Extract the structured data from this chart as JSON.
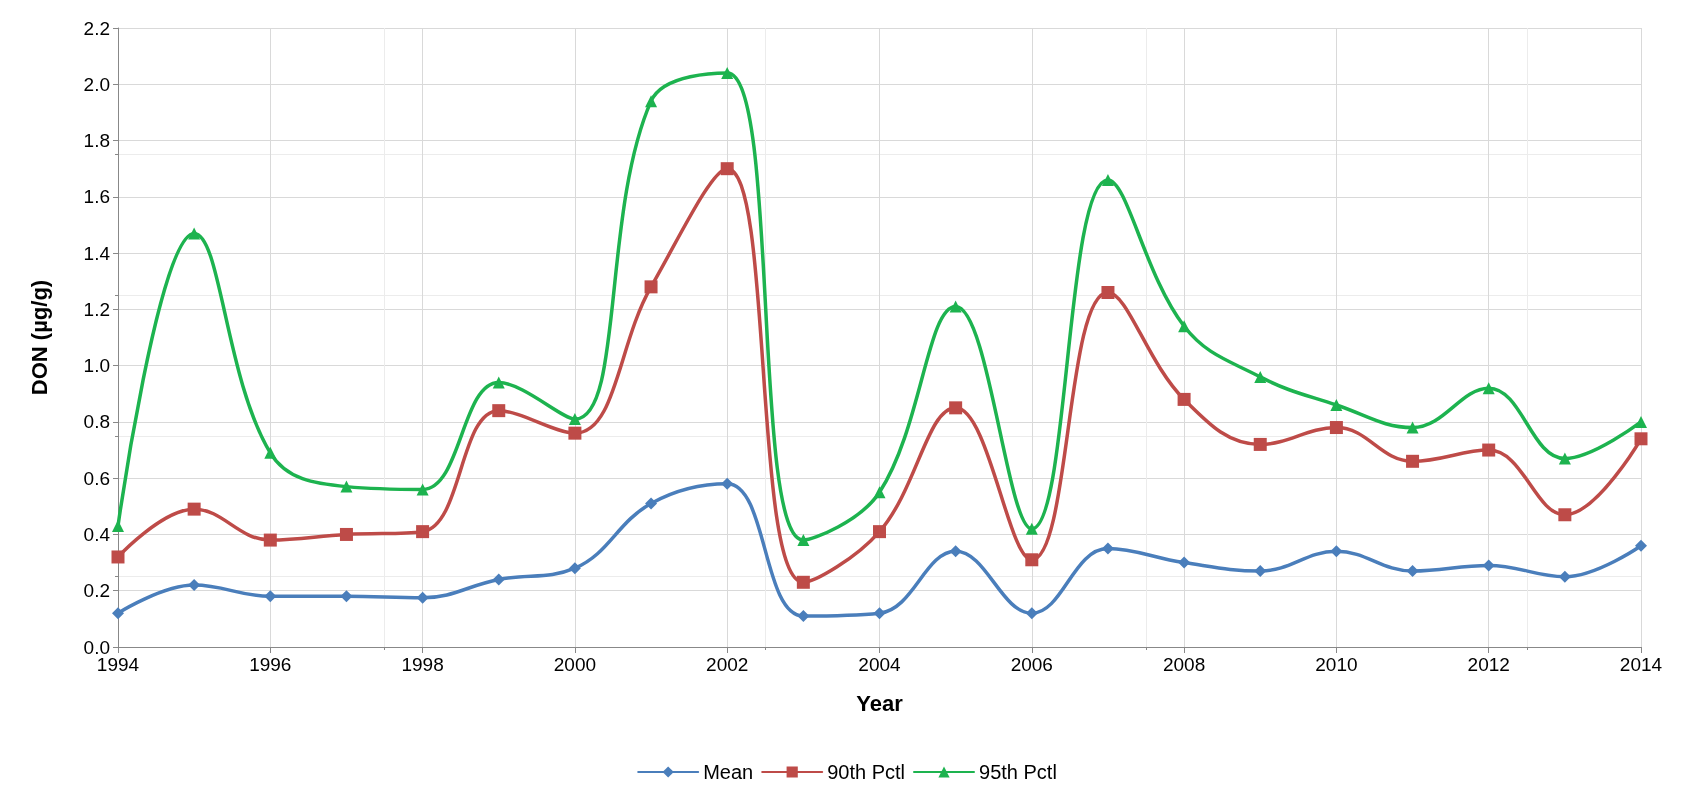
{
  "chart_data": {
    "type": "line",
    "xlabel": "Year",
    "ylabel": "DON (µg/g)",
    "x": [
      1994,
      1995,
      1996,
      1997,
      1998,
      1999,
      2000,
      2001,
      2002,
      2003,
      2004,
      2005,
      2006,
      2007,
      2008,
      2009,
      2010,
      2011,
      2012,
      2013,
      2014
    ],
    "xlim": [
      1994,
      2014
    ],
    "xticks": [
      1994,
      1996,
      1998,
      2000,
      2002,
      2004,
      2006,
      2008,
      2010,
      2012,
      2014
    ],
    "ylim": [
      0,
      2.2
    ],
    "yticks": [
      {
        "value": 0,
        "label": "0.0"
      },
      0.2,
      0.4,
      0.6,
      0.8,
      {
        "value": 1,
        "label": "1.0"
      },
      1.2,
      1.4,
      1.6,
      1.8,
      {
        "value": 2,
        "label": "2.0"
      },
      2.2
    ],
    "grid": true,
    "legend": "bottom",
    "line_style": "solid",
    "series": [
      {
        "name": "Mean",
        "color": "#4a7ebb",
        "marker": "diamond",
        "values": [
          0.12,
          0.22,
          0.18,
          0.18,
          0.175,
          0.24,
          0.28,
          0.51,
          0.58,
          0.11,
          0.12,
          0.34,
          0.12,
          0.35,
          0.3,
          0.27,
          0.34,
          0.27,
          0.29,
          0.25,
          0.36
        ]
      },
      {
        "name": "90th Pctl",
        "color": "#be4b48",
        "marker": "square",
        "values": [
          0.32,
          0.49,
          0.38,
          0.4,
          0.41,
          0.84,
          0.76,
          1.28,
          1.7,
          0.23,
          0.41,
          0.85,
          0.31,
          1.26,
          0.88,
          0.72,
          0.78,
          0.66,
          0.7,
          0.47,
          0.74
        ]
      },
      {
        "name": "95th Pctl",
        "color": "#1db34f",
        "marker": "triangle",
        "values": [
          0.43,
          1.47,
          0.69,
          0.57,
          0.56,
          0.94,
          0.81,
          1.94,
          2.04,
          0.38,
          0.55,
          1.21,
          0.42,
          1.66,
          1.14,
          0.96,
          0.86,
          0.78,
          0.92,
          0.67,
          0.8
        ]
      }
    ]
  }
}
